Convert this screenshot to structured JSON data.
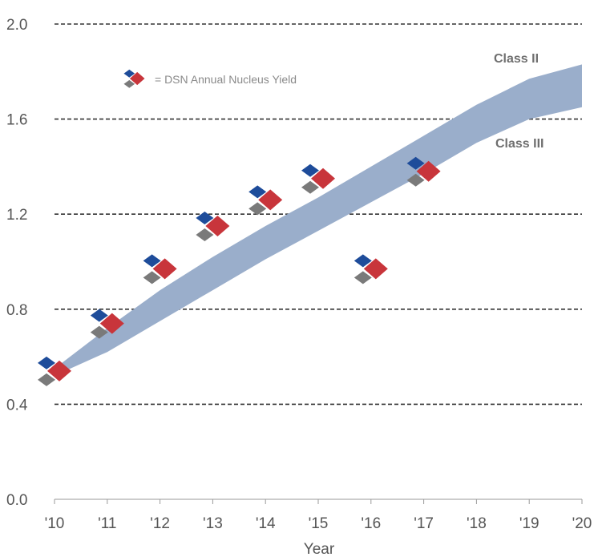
{
  "chart_data": {
    "type": "scatter",
    "title": "",
    "xlabel": "Year",
    "ylabel": "",
    "ylim": [
      0.0,
      2.0
    ],
    "y_ticks": [
      "0.0",
      "0.4",
      "0.8",
      "1.2",
      "1.6",
      "2.0"
    ],
    "x_ticks": [
      "'10",
      "'11",
      "'12",
      "'13",
      "'14",
      "'15",
      "'16",
      "'17",
      "'18",
      "'19",
      "'20"
    ],
    "grid": true,
    "legend": {
      "placement": "top-left",
      "label": "= DSN Annual Nucleus Yield"
    },
    "series": [
      {
        "name": "DSN Annual Nucleus Yield",
        "x": [
          2010,
          2011,
          2012,
          2013,
          2014,
          2015,
          2016,
          2017
        ],
        "y": [
          0.54,
          0.74,
          0.97,
          1.15,
          1.26,
          1.35,
          0.97,
          1.38
        ]
      }
    ],
    "band": {
      "x": [
        2010,
        2011,
        2012,
        2013,
        2014,
        2015,
        2016,
        2017,
        2018,
        2019,
        2020
      ],
      "upper": [
        0.55,
        0.72,
        0.88,
        1.02,
        1.15,
        1.27,
        1.4,
        1.53,
        1.66,
        1.77,
        1.83
      ],
      "lower": [
        0.52,
        0.62,
        0.75,
        0.88,
        1.01,
        1.13,
        1.25,
        1.37,
        1.5,
        1.6,
        1.65
      ],
      "upper_label": "Class II",
      "lower_label": "Class III",
      "color": "#9aaecb"
    },
    "marker_colors": {
      "blue": "#1e4c9a",
      "red": "#c8353b",
      "gray": "#7a7a7a"
    }
  }
}
